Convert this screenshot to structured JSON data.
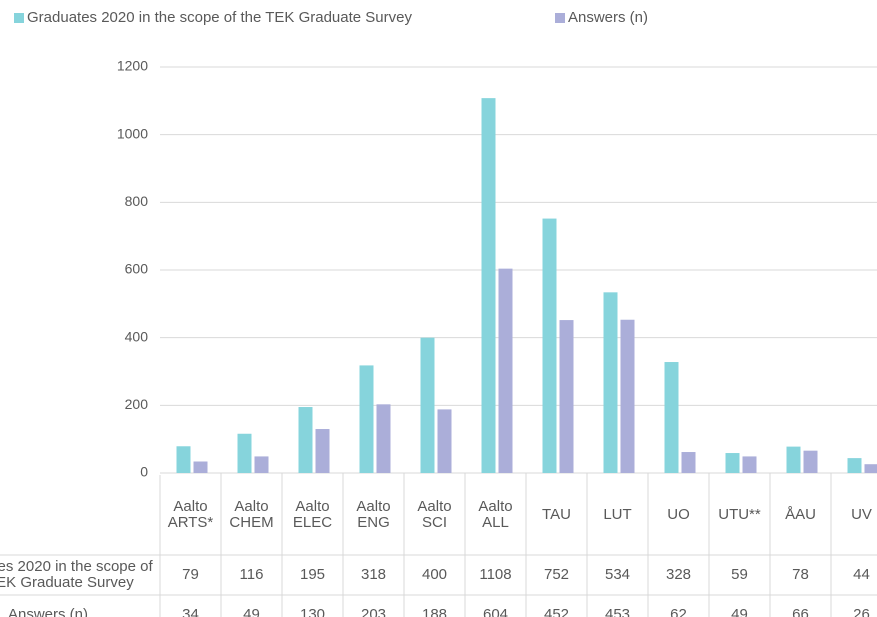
{
  "chart_data": {
    "type": "bar",
    "categories": [
      "Aalto ARTS*",
      "Aalto CHEM",
      "Aalto ELEC",
      "Aalto ENG",
      "Aalto SCI",
      "Aalto ALL",
      "TAU",
      "LUT",
      "UO",
      "UTU**",
      "ÅAU",
      "UV"
    ],
    "series": [
      {
        "name": "Graduates 2020 in the scope of the TEK Graduate Survey",
        "color": "#86d4dc",
        "values": [
          79,
          116,
          195,
          318,
          400,
          1108,
          752,
          534,
          328,
          59,
          78,
          44
        ]
      },
      {
        "name": "Answers (n)",
        "color": "#abaed9",
        "values": [
          34,
          49,
          130,
          203,
          188,
          604,
          452,
          453,
          62,
          49,
          66,
          26
        ]
      }
    ],
    "ylim": [
      0,
      1200
    ],
    "yticks": [
      0,
      200,
      400,
      600,
      800,
      1000,
      1200
    ],
    "grid": true,
    "legend": "top"
  }
}
